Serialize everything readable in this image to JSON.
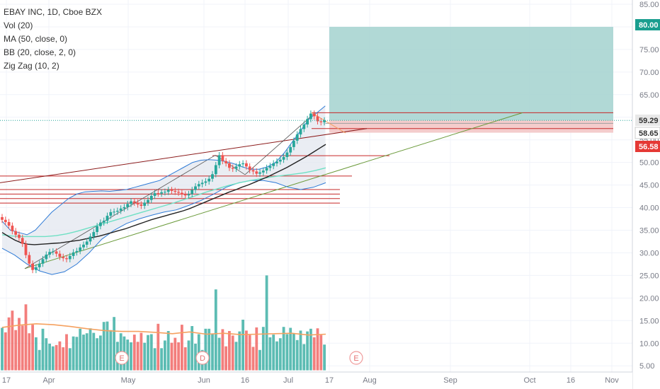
{
  "legend": {
    "title": "EBAY INC, 1D, Cboe BZX",
    "studies": [
      "Vol (20)",
      "MA (50, close, 0)",
      "BB (20, close, 2, 0)",
      "Zig Zag (10, 2)"
    ]
  },
  "colors": {
    "up": "#26a69a",
    "down": "#ef5350",
    "ma": "#222222",
    "bb_band": "#2f7bd6",
    "bb_basis": "#6fe0c4",
    "resistance": "#c62828",
    "trend_support": "#6a9a3a",
    "target_zone": "#a8d5d2",
    "stop_zone": "#f3c6c6",
    "vol_ma": "#f5a160"
  },
  "chart_data": {
    "type": "candlestick",
    "y_axis": {
      "range": [
        4,
        86
      ],
      "ticks": [
        "85.00",
        "80.00",
        "75.00",
        "70.00",
        "65.00",
        "60.00",
        "55.00",
        "50.00",
        "45.00",
        "40.00",
        "35.00",
        "30.00",
        "25.00",
        "20.00",
        "15.00",
        "10.00",
        "5.00"
      ],
      "tick_values": [
        85,
        80,
        75,
        70,
        65,
        60,
        55,
        50,
        45,
        40,
        35,
        30,
        25,
        20,
        15,
        10,
        5
      ]
    },
    "x_axis": {
      "ticks": [
        "17",
        "Apr",
        "May",
        "Jun",
        "16",
        "Jul",
        "17",
        "Aug",
        "Sep",
        "Oct",
        "16",
        "Nov"
      ]
    },
    "price_labels": [
      {
        "text": "80.00",
        "value": 80.0,
        "style": "target"
      },
      {
        "text": "59.29",
        "value": 59.29,
        "style": "current"
      },
      {
        "text": "58.65",
        "value": 58.65,
        "style": "entry"
      },
      {
        "text": "56.58",
        "value": 56.58,
        "style": "stop"
      }
    ],
    "closes": [
      37.3,
      36.8,
      36,
      34.8,
      34,
      33.3,
      32,
      29.5,
      27.6,
      26.2,
      26.8,
      27.6,
      28.6,
      29.6,
      30.2,
      30.3,
      29.8,
      29.1,
      28.8,
      28.6,
      29.3,
      30.1,
      30.4,
      31.2,
      31.8,
      32.5,
      33.6,
      34.6,
      35.9,
      36.7,
      37.1,
      38.2,
      39,
      39.1,
      39.3,
      39.8,
      40.1,
      40.8,
      41.4,
      41.1,
      40.7,
      40.4,
      41.1,
      41.7,
      42.6,
      43.2,
      43.1,
      43.4,
      43.5,
      43.9,
      43.7,
      43.5,
      43.3,
      42.9,
      42.7,
      43,
      43.9,
      44.7,
      45.2,
      45.5,
      45.8,
      46.4,
      47.4,
      49.4,
      51.6,
      50.3,
      49.8,
      48.8,
      48.6,
      49.1,
      49.6,
      49.8,
      49.1,
      48.3,
      48,
      47.5,
      47.8,
      48.2,
      48.8,
      49.2,
      49.8,
      50.2,
      50.6,
      51.2,
      52.2,
      53.4,
      54.8,
      56.2,
      57.4,
      58.4,
      59.6,
      60.8,
      60.2,
      59.1,
      58.9,
      59.3
    ],
    "volume_values": [
      13.4,
      12.4,
      15.7,
      17.2,
      12.9,
      15.6,
      13.9,
      18.6,
      12.2,
      14.1,
      11.3,
      8.5,
      13.2,
      11.1,
      9.9,
      9.3,
      9.6,
      10.4,
      9.1,
      12.0,
      8.9,
      11.5,
      11.4,
      13.2,
      11.9,
      12.2,
      13.3,
      12.3,
      11.1,
      11.7,
      14.7,
      14.8,
      12.9,
      15.8,
      10.3,
      12.2,
      11.5,
      10.8,
      10.2,
      11.9,
      10.3,
      12.3,
      10.1,
      11.8,
      12.0,
      8.9,
      14.3,
      8.9,
      10.6,
      12.7,
      10.1,
      11.2,
      10.2,
      14.1,
      9.1,
      10.6,
      13.8,
      9.9,
      12.0,
      8.5,
      13.2,
      13.2,
      12.0,
      21.9,
      11.2,
      13.1,
      9.3,
      12.7,
      11.7,
      10.3,
      12.6,
      15.2,
      12.8,
      11.8,
      9.2,
      13.5,
      8.5,
      13.6,
      25.0,
      11.3,
      11.9,
      10.4,
      11.1,
      13.6,
      12.0,
      13.4,
      12.1,
      10.7,
      12.8,
      9.8,
      12.6,
      13.2,
      11.3,
      13.3,
      11.8,
      9.7
    ],
    "ma50": [
      34.5,
      33.6,
      32.8,
      32.2,
      31.9,
      31.8,
      31.9,
      32,
      32.1,
      32.2,
      32.4,
      32.6,
      32.8,
      33.1,
      33.4,
      33.7,
      34.1,
      34.5,
      34.9,
      35.3,
      35.8,
      36.3,
      36.8,
      37.3,
      37.7,
      38.1,
      38.5,
      38.9,
      39.3,
      39.8,
      40.4,
      41,
      41.6,
      42.2,
      42.8,
      43.4,
      43.9,
      44.5,
      45,
      45.6,
      46.2,
      46.8,
      47.5,
      48.2,
      48.9,
      49.7,
      50.5,
      51.3,
      52.2,
      53.1,
      54
    ],
    "bb_upper": [
      37,
      35,
      34.5,
      34,
      35,
      37,
      39,
      40.5,
      42,
      43,
      43.5,
      43.6,
      43.7,
      43.6,
      43.8,
      44,
      44.5,
      45,
      45.5,
      46,
      47,
      48,
      49,
      50,
      50.5,
      50.6,
      50.5,
      50.2,
      49.7,
      49,
      48.5,
      48.5,
      49,
      50,
      52,
      54.5,
      57,
      59.5,
      61,
      62.5
    ],
    "bb_basis": [
      34,
      33.7,
      33.6,
      33.6,
      33.6,
      33.8,
      34.2,
      34.8,
      35.5,
      36.2,
      36.9,
      37.6,
      38.3,
      39,
      39.7,
      40.4,
      41.1,
      41.9,
      42.7,
      43.5,
      44.2,
      44.9,
      45.5,
      46,
      46.4,
      46.8,
      47.1,
      47.4,
      47.7,
      48.2,
      48.8
    ],
    "bb_lower": [
      31,
      29.5,
      27.5,
      26,
      25.2,
      25.8,
      27.5,
      30,
      33,
      35,
      36.5,
      37.5,
      38.3,
      39,
      39.5,
      40.5,
      41.6,
      43,
      44.5,
      45.5,
      46,
      46,
      45.5,
      44.5,
      44,
      44.5,
      45.5
    ],
    "vol_ma": [
      13.5,
      14,
      14.3,
      14.1,
      13.7,
      13.2,
      12.8,
      12.6,
      12.6,
      12.4,
      12.1,
      12.5,
      12,
      12.2,
      11.9,
      12,
      12.1,
      12.2,
      11.8,
      12
    ]
  }
}
